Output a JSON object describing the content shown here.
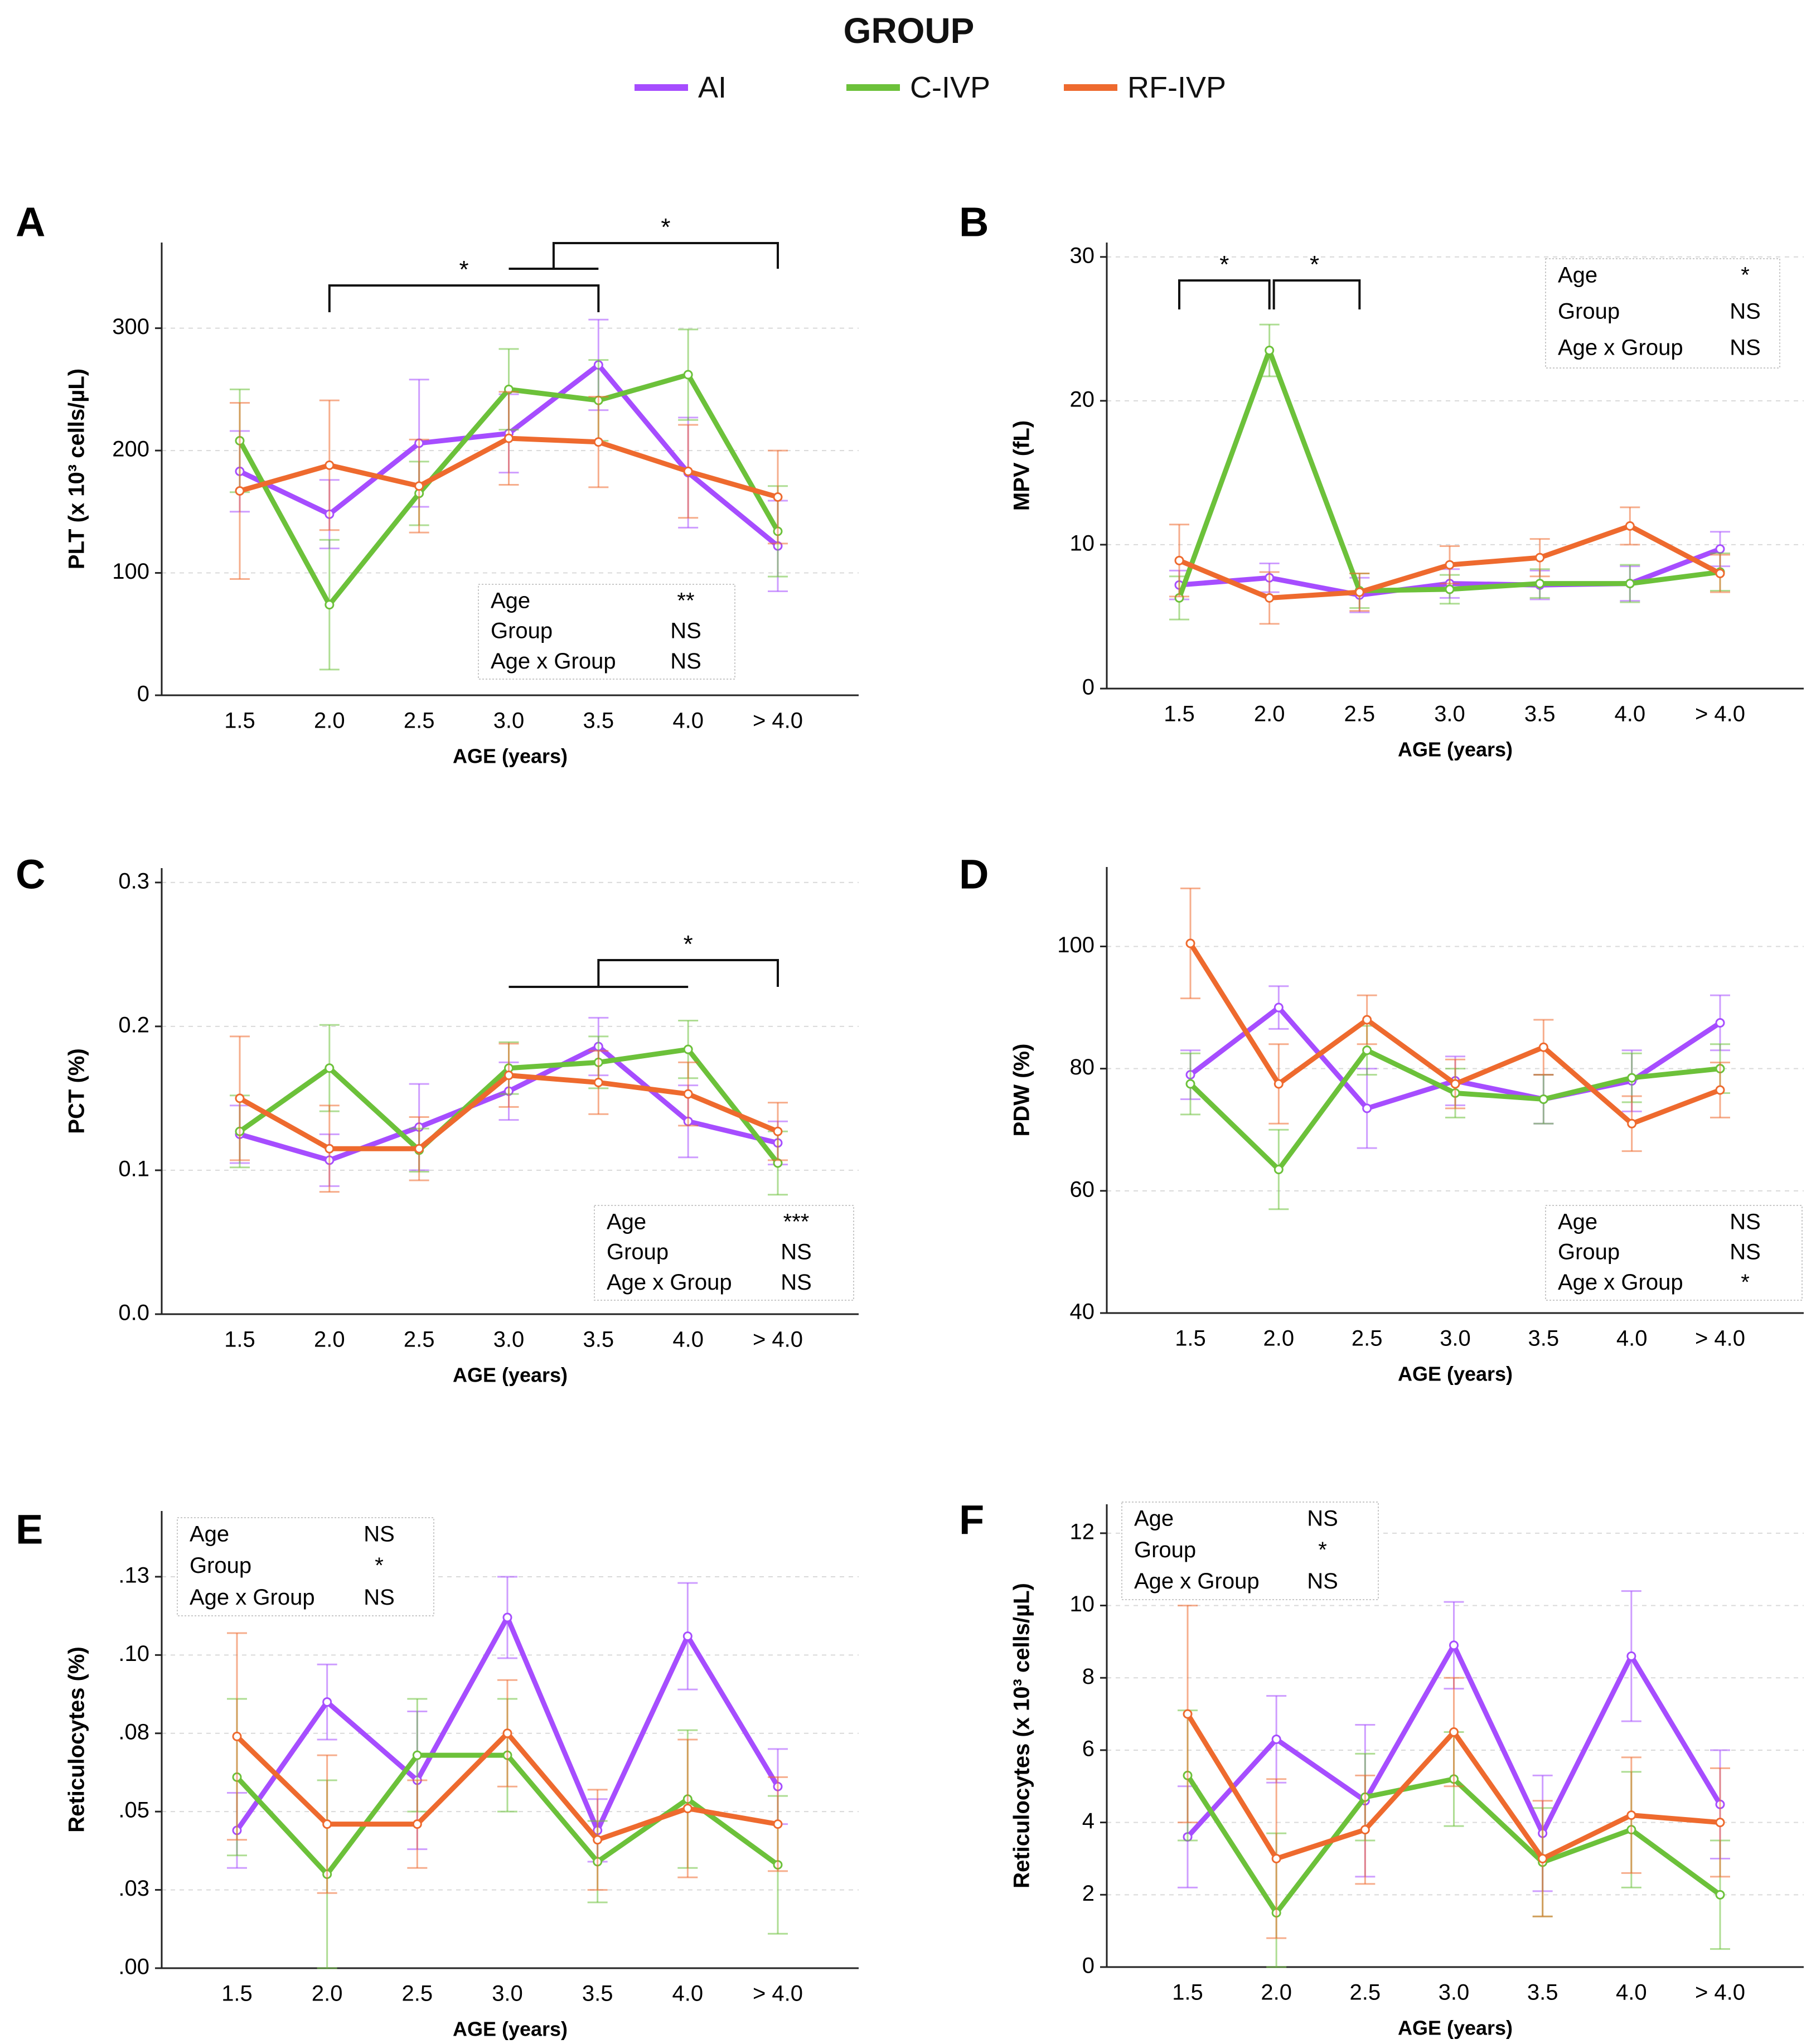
{
  "legend": {
    "title": "GROUP",
    "items": [
      {
        "label": "AI",
        "color": "#a64dff"
      },
      {
        "label": "C-IVP",
        "color": "#6cc13a"
      },
      {
        "label": "RF-IVP",
        "color": "#ee6a2e"
      }
    ]
  },
  "chart_data": [
    {
      "panel": "A",
      "type": "line",
      "xlabel": "AGE (years)",
      "ylabel": "PLT (x 10³  cells/µL)",
      "categories": [
        "1.5",
        "2.0",
        "2.5",
        "3.0",
        "3.5",
        "4.0",
        "> 4.0"
      ],
      "ylim": [
        0,
        370
      ],
      "yticks": [
        0,
        100,
        200,
        300
      ],
      "ytick_labels": [
        "0",
        "100",
        "200",
        "300"
      ],
      "series": [
        {
          "name": "AI",
          "values": [
            183,
            148,
            206,
            214,
            270,
            182,
            122
          ],
          "err": [
            33,
            28,
            52,
            32,
            37,
            45,
            37
          ]
        },
        {
          "name": "C-IVP",
          "values": [
            208,
            74,
            165,
            250,
            241,
            262,
            134
          ],
          "err": [
            42,
            53,
            26,
            33,
            33,
            37,
            37
          ]
        },
        {
          "name": "RF-IVP",
          "values": [
            167,
            188,
            171,
            210,
            207,
            183,
            162
          ],
          "err": [
            72,
            53,
            38,
            38,
            37,
            38,
            38
          ]
        }
      ],
      "stats": [
        {
          "label": "Age",
          "value": "**"
        },
        {
          "label": "Group",
          "value": "NS"
        },
        {
          "label": "Age x Group",
          "value": "NS"
        }
      ],
      "significance_label": "*"
    },
    {
      "panel": "B",
      "type": "line",
      "xlabel": "AGE (years)",
      "ylabel": "MPV (fL)",
      "categories": [
        "1.5",
        "2.0",
        "2.5",
        "3.0",
        "3.5",
        "4.0",
        "> 4.0"
      ],
      "ylim": [
        0,
        31
      ],
      "yticks": [
        0,
        10,
        20,
        30
      ],
      "ytick_labels": [
        "0",
        "10",
        "20",
        "30"
      ],
      "series": [
        {
          "name": "AI",
          "values": [
            7.2,
            7.7,
            6.5,
            7.3,
            7.2,
            7.3,
            9.7
          ],
          "err": [
            1.0,
            1.0,
            1.2,
            1.0,
            1.0,
            1.2,
            1.2
          ]
        },
        {
          "name": "C-IVP",
          "values": [
            6.3,
            23.5,
            6.8,
            6.9,
            7.3,
            7.3,
            8.1
          ],
          "err": [
            1.5,
            1.8,
            1.2,
            1.0,
            1.0,
            1.3,
            1.3
          ]
        },
        {
          "name": "RF-IVP",
          "values": [
            8.9,
            6.3,
            6.7,
            8.6,
            9.1,
            11.3,
            8.0
          ],
          "err": [
            2.5,
            1.8,
            1.3,
            1.3,
            1.3,
            1.3,
            1.3
          ]
        }
      ],
      "stats": [
        {
          "label": "Age",
          "value": "*"
        },
        {
          "label": "Group",
          "value": "NS"
        },
        {
          "label": "Age x Group",
          "value": "NS"
        }
      ],
      "significance_label": "*"
    },
    {
      "panel": "C",
      "type": "line",
      "xlabel": "AGE (years)",
      "ylabel": "PCT (%)",
      "categories": [
        "1.5",
        "2.0",
        "2.5",
        "3.0",
        "3.5",
        "4.0",
        "> 4.0"
      ],
      "ylim": [
        0,
        0.31
      ],
      "yticks": [
        0,
        0.1,
        0.2,
        0.3
      ],
      "ytick_labels": [
        "0.0",
        "0.1",
        "0.2",
        "0.3"
      ],
      "series": [
        {
          "name": "AI",
          "values": [
            0.125,
            0.107,
            0.13,
            0.155,
            0.186,
            0.134,
            0.119
          ],
          "err": [
            0.02,
            0.018,
            0.03,
            0.02,
            0.02,
            0.025,
            0.015
          ]
        },
        {
          "name": "C-IVP",
          "values": [
            0.127,
            0.171,
            0.114,
            0.171,
            0.175,
            0.184,
            0.105
          ],
          "err": [
            0.025,
            0.03,
            0.015,
            0.018,
            0.018,
            0.02,
            0.022
          ]
        },
        {
          "name": "RF-IVP",
          "values": [
            0.15,
            0.115,
            0.115,
            0.166,
            0.161,
            0.153,
            0.127
          ],
          "err": [
            0.043,
            0.03,
            0.022,
            0.022,
            0.022,
            0.022,
            0.02
          ]
        }
      ],
      "stats": [
        {
          "label": "Age",
          "value": "***"
        },
        {
          "label": "Group",
          "value": "NS"
        },
        {
          "label": "Age x Group",
          "value": "NS"
        }
      ],
      "significance_label": "*"
    },
    {
      "panel": "D",
      "type": "line",
      "xlabel": "AGE (years)",
      "ylabel": "PDW (%)",
      "categories": [
        "1.5",
        "2.0",
        "2.5",
        "3.0",
        "3.5",
        "4.0",
        "> 4.0"
      ],
      "ylim": [
        40,
        113
      ],
      "yticks": [
        40,
        60,
        80,
        100
      ],
      "ytick_labels": [
        "40",
        "60",
        "80",
        "100"
      ],
      "series": [
        {
          "name": "AI",
          "values": [
            79.0,
            90.0,
            73.5,
            78.0,
            75.0,
            78.0,
            87.5
          ],
          "err": [
            4,
            3.5,
            6.5,
            4,
            4,
            5,
            4.5
          ]
        },
        {
          "name": "C-IVP",
          "values": [
            77.5,
            63.5,
            83.0,
            76.0,
            75.0,
            78.5,
            80.0
          ],
          "err": [
            5,
            6.5,
            4,
            4,
            4,
            4,
            4
          ]
        },
        {
          "name": "RF-IVP",
          "values": [
            100.5,
            77.5,
            88.0,
            77.5,
            83.5,
            71.0,
            76.5
          ],
          "err": [
            9,
            6.5,
            4,
            4,
            4.5,
            4.5,
            4.5
          ]
        }
      ],
      "stats": [
        {
          "label": "Age",
          "value": "NS"
        },
        {
          "label": "Group",
          "value": "NS"
        },
        {
          "label": "Age x Group",
          "value": "*"
        }
      ]
    },
    {
      "panel": "E",
      "type": "line",
      "xlabel": "AGE (years)",
      "ylabel": "Reticulocytes (%)",
      "categories": [
        "1.5",
        "2.0",
        "2.5",
        "3.0",
        "3.5",
        "4.0",
        "> 4.0"
      ],
      "ylim": [
        0,
        0.146
      ],
      "yticks": [
        0,
        0.025,
        0.05,
        0.075,
        0.1,
        0.125
      ],
      "ytick_labels": [
        ".00",
        ".03",
        ".05",
        ".08",
        ".10",
        ".13"
      ],
      "series": [
        {
          "name": "AI",
          "values": [
            0.044,
            0.085,
            0.06,
            0.112,
            0.044,
            0.106,
            0.058
          ],
          "err": [
            0.012,
            0.012,
            0.022,
            0.013,
            0.01,
            0.017,
            0.012
          ]
        },
        {
          "name": "C-IVP",
          "values": [
            0.061,
            0.03,
            0.068,
            0.068,
            0.034,
            0.054,
            0.033
          ],
          "err": [
            0.025,
            0.03,
            0.018,
            0.018,
            0.013,
            0.022,
            0.022
          ]
        },
        {
          "name": "RF-IVP",
          "values": [
            0.074,
            0.046,
            0.046,
            0.075,
            0.041,
            0.051,
            0.046
          ],
          "err": [
            0.033,
            0.022,
            0.014,
            0.017,
            0.016,
            0.022,
            0.015
          ]
        }
      ],
      "stats": [
        {
          "label": "Age",
          "value": "NS"
        },
        {
          "label": "Group",
          "value": "*"
        },
        {
          "label": "Age x Group",
          "value": "NS"
        }
      ]
    },
    {
      "panel": "F",
      "type": "line",
      "xlabel": "AGE (years)",
      "ylabel": "Reticulocytes (x 10³ cells/µL)",
      "categories": [
        "1.5",
        "2.0",
        "2.5",
        "3.0",
        "3.5",
        "4.0",
        "> 4.0"
      ],
      "ylim": [
        0,
        12.8
      ],
      "yticks": [
        0,
        2,
        4,
        6,
        8,
        10,
        12
      ],
      "ytick_labels": [
        "0",
        "2",
        "4",
        "6",
        "8",
        "10",
        "12"
      ],
      "series": [
        {
          "name": "AI",
          "values": [
            3.6,
            6.3,
            4.6,
            8.9,
            3.7,
            8.6,
            4.5
          ],
          "err": [
            1.4,
            1.2,
            2.1,
            1.2,
            1.6,
            1.8,
            1.5
          ]
        },
        {
          "name": "C-IVP",
          "values": [
            5.3,
            1.5,
            4.7,
            5.2,
            2.9,
            3.8,
            2.0
          ],
          "err": [
            1.8,
            2.2,
            1.2,
            1.3,
            1.5,
            1.6,
            1.5
          ]
        },
        {
          "name": "RF-IVP",
          "values": [
            7.0,
            3.0,
            3.8,
            6.5,
            3.0,
            4.2,
            4.0
          ],
          "err": [
            3.0,
            2.2,
            1.5,
            1.5,
            1.6,
            1.6,
            1.5
          ]
        }
      ],
      "stats": [
        {
          "label": "Age",
          "value": "NS"
        },
        {
          "label": "Group",
          "value": "*"
        },
        {
          "label": "Age x Group",
          "value": "NS"
        }
      ]
    }
  ]
}
